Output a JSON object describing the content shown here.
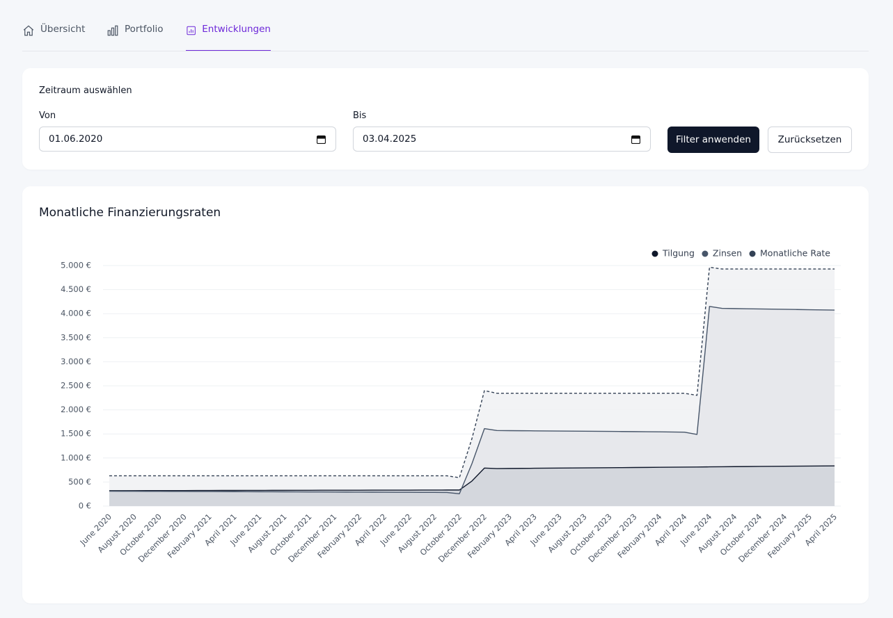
{
  "tabs": [
    {
      "label": "Übersicht",
      "active": false
    },
    {
      "label": "Portfolio",
      "active": false
    },
    {
      "label": "Entwicklungen",
      "active": true
    }
  ],
  "filter": {
    "title": "Zeitraum auswählen",
    "from_label": "Von",
    "from_value": "01.06.2020",
    "to_label": "Bis",
    "to_value": "03.04.2025",
    "apply_button": "Filter anwenden",
    "reset_button": "Zurücksetzen"
  },
  "chart_data": {
    "type": "line",
    "title": "Monatliche Finanzierungsraten",
    "categories": [
      "June 2020",
      null,
      "August 2020",
      null,
      "October 2020",
      null,
      "December 2020",
      null,
      "February 2021",
      null,
      "April 2021",
      null,
      "June 2021",
      null,
      "August 2021",
      null,
      "October 2021",
      null,
      "December 2021",
      null,
      "February 2022",
      null,
      "April 2022",
      null,
      "June 2022",
      null,
      "August 2022",
      null,
      "October 2022",
      null,
      "December 2022",
      null,
      "February 2023",
      null,
      "April 2023",
      null,
      "June 2023",
      null,
      "August 2023",
      null,
      "October 2023",
      null,
      "December 2023",
      null,
      "February 2024",
      null,
      "April 2024",
      null,
      "June 2024",
      null,
      "August 2024",
      null,
      "October 2024",
      null,
      "December 2024",
      null,
      "February 2025",
      null,
      "April 2025"
    ],
    "series": [
      {
        "name": "Tilgung",
        "color": "#0f172a",
        "fill": "#d1d5db",
        "dashed": false,
        "values": [
          320,
          321,
          321,
          322,
          322,
          323,
          323,
          324,
          324,
          325,
          325,
          326,
          326,
          327,
          327,
          328,
          328,
          329,
          329,
          330,
          330,
          331,
          331,
          332,
          332,
          333,
          333,
          334,
          334,
          520,
          790,
          780,
          782,
          784,
          786,
          788,
          790,
          792,
          794,
          796,
          798,
          800,
          802,
          804,
          806,
          808,
          810,
          812,
          815,
          818,
          820,
          822,
          824,
          826,
          828,
          830,
          832,
          834,
          836
        ]
      },
      {
        "name": "Zinsen",
        "color": "#475569",
        "fill": "#e5e7eb",
        "dashed": false,
        "values": [
          310,
          309,
          308,
          307,
          306,
          305,
          304,
          303,
          302,
          301,
          300,
          299,
          298,
          297,
          296,
          295,
          294,
          293,
          292,
          291,
          290,
          289,
          288,
          287,
          286,
          285,
          284,
          283,
          256,
          880,
          1610,
          1570,
          1568,
          1566,
          1564,
          1562,
          1560,
          1558,
          1556,
          1554,
          1552,
          1550,
          1548,
          1546,
          1544,
          1540,
          1536,
          1490,
          4150,
          4110,
          4106,
          4102,
          4098,
          4094,
          4090,
          4086,
          4082,
          4078,
          4074
        ]
      },
      {
        "name": "Monatliche Rate",
        "color": "#334155",
        "fill": "#f1f2f4",
        "dashed": true,
        "values": [
          630,
          630,
          630,
          630,
          630,
          630,
          630,
          630,
          630,
          630,
          630,
          630,
          630,
          630,
          630,
          630,
          630,
          630,
          630,
          630,
          630,
          630,
          630,
          630,
          630,
          630,
          630,
          630,
          590,
          1400,
          2400,
          2345,
          2345,
          2345,
          2345,
          2345,
          2345,
          2345,
          2345,
          2345,
          2345,
          2345,
          2345,
          2345,
          2345,
          2345,
          2345,
          2302,
          4965,
          4928,
          4928,
          4928,
          4928,
          4928,
          4928,
          4928,
          4928,
          4928,
          4928
        ]
      }
    ],
    "ylim": [
      0,
      5000
    ],
    "yticks": [
      {
        "value": 0,
        "label": "0 €"
      },
      {
        "value": 500,
        "label": "500 €"
      },
      {
        "value": 1000,
        "label": "1.000 €"
      },
      {
        "value": 1500,
        "label": "1.500 €"
      },
      {
        "value": 2000,
        "label": "2.000 €"
      },
      {
        "value": 2500,
        "label": "2.500 €"
      },
      {
        "value": 3000,
        "label": "3.000 €"
      },
      {
        "value": 3500,
        "label": "3.500 €"
      },
      {
        "value": 4000,
        "label": "4.000 €"
      },
      {
        "value": 4500,
        "label": "4.500 €"
      },
      {
        "value": 5000,
        "label": "5.000 €"
      }
    ],
    "grid": true,
    "legend": "top-right"
  }
}
